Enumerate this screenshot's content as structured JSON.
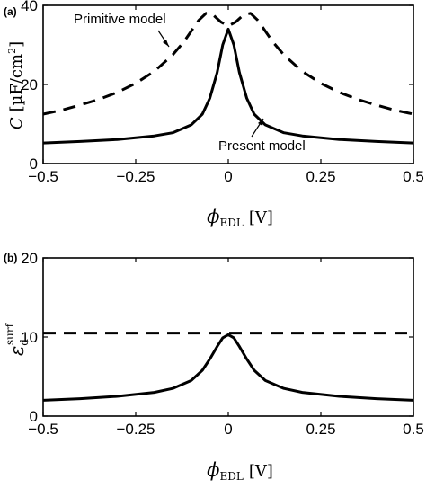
{
  "chart_data": [
    {
      "type": "line",
      "panel_label": "(a)",
      "xlabel": "ϕEDL [V]",
      "xlabel_main": "ϕ",
      "xlabel_sub": "EDL",
      "xlabel_unit": "[V]",
      "ylabel": "C [µF/cm²]",
      "ylabel_main": "C",
      "ylabel_unit": "[µF/cm",
      "ylabel_sup": "2",
      "ylabel_close": "]",
      "xlim": [
        -0.5,
        0.5
      ],
      "ylim": [
        0,
        40
      ],
      "xticks": [
        -0.5,
        -0.25,
        0,
        0.25,
        0.5
      ],
      "xtick_labels": [
        "−0.5",
        "−0.25",
        "0",
        "0.25",
        "0.5"
      ],
      "yticks": [
        0,
        20,
        40
      ],
      "ytick_labels": [
        "0",
        "20",
        "40"
      ],
      "grid": false,
      "annotations": [
        {
          "text": "Primitive model",
          "points_to": "dashed curve"
        },
        {
          "text": "Present model",
          "points_to": "solid curve"
        }
      ],
      "series": [
        {
          "style": "dashed",
          "x": [
            -0.5,
            -0.45,
            -0.4,
            -0.35,
            -0.3,
            -0.25,
            -0.2,
            -0.15,
            -0.12,
            -0.1,
            -0.08,
            -0.06,
            -0.04,
            -0.02,
            0,
            0.02,
            0.04,
            0.06,
            0.08,
            0.1,
            0.12,
            0.15,
            0.2,
            0.25,
            0.3,
            0.35,
            0.4,
            0.45,
            0.5
          ],
          "y": [
            12.5,
            13.5,
            14.8,
            16.2,
            18.0,
            20.3,
            23.3,
            27.5,
            30.8,
            33.5,
            36.2,
            38.0,
            37.5,
            35.8,
            34.8,
            35.8,
            37.5,
            38.0,
            36.2,
            33.5,
            30.8,
            27.5,
            23.3,
            20.3,
            18.0,
            16.2,
            14.8,
            13.5,
            12.5
          ]
        },
        {
          "style": "solid",
          "x": [
            -0.5,
            -0.4,
            -0.3,
            -0.2,
            -0.15,
            -0.1,
            -0.07,
            -0.05,
            -0.03,
            -0.015,
            0,
            0.015,
            0.03,
            0.05,
            0.07,
            0.1,
            0.15,
            0.2,
            0.3,
            0.4,
            0.5
          ],
          "y": [
            5.2,
            5.6,
            6.1,
            7.0,
            7.8,
            9.8,
            12.5,
            16.5,
            23.0,
            30.0,
            34.0,
            30.0,
            23.0,
            16.5,
            12.5,
            9.8,
            7.8,
            7.0,
            6.1,
            5.6,
            5.2
          ]
        }
      ]
    },
    {
      "type": "line",
      "panel_label": "(b)",
      "xlabel": "ϕEDL [V]",
      "xlabel_main": "ϕ",
      "xlabel_sub": "EDL",
      "xlabel_unit": "[V]",
      "ylabel": "εd surf",
      "ylabel_main": "ε",
      "ylabel_sub": "d",
      "ylabel_sup": "surf",
      "xlim": [
        -0.5,
        0.5
      ],
      "ylim": [
        0,
        20
      ],
      "xticks": [
        -0.5,
        -0.25,
        0,
        0.25,
        0.5
      ],
      "xtick_labels": [
        "−0.5",
        "−0.25",
        "0",
        "0.25",
        "0.5"
      ],
      "yticks": [
        0,
        10,
        20
      ],
      "ytick_labels": [
        "0",
        "10",
        "20"
      ],
      "grid": false,
      "series": [
        {
          "style": "dashed",
          "x": [
            -0.5,
            0.5
          ],
          "y": [
            10.5,
            10.5
          ]
        },
        {
          "style": "solid",
          "x": [
            -0.5,
            -0.4,
            -0.3,
            -0.2,
            -0.15,
            -0.1,
            -0.07,
            -0.05,
            -0.03,
            -0.015,
            0,
            0.015,
            0.03,
            0.05,
            0.07,
            0.1,
            0.15,
            0.2,
            0.3,
            0.4,
            0.5
          ],
          "y": [
            2.0,
            2.2,
            2.5,
            3.0,
            3.5,
            4.5,
            5.8,
            7.2,
            8.8,
            9.9,
            10.3,
            9.9,
            8.8,
            7.2,
            5.8,
            4.5,
            3.5,
            3.0,
            2.5,
            2.2,
            2.0
          ]
        }
      ]
    }
  ]
}
